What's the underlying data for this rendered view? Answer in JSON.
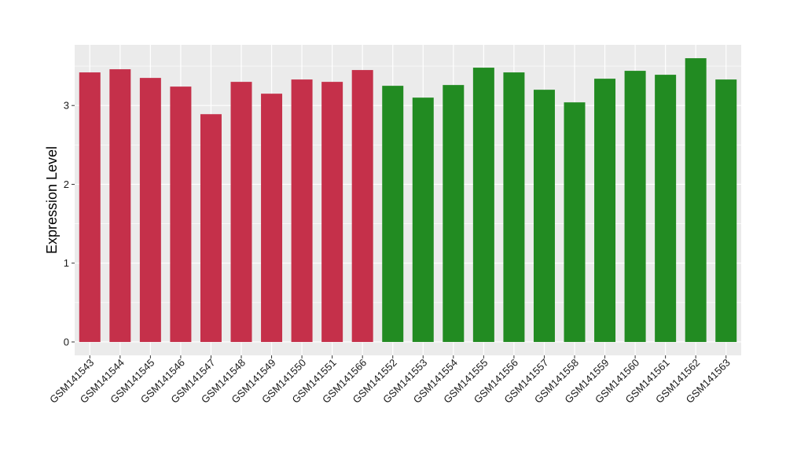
{
  "chart_data": {
    "type": "bar",
    "title": "",
    "xlabel": "",
    "ylabel": "Expression Level",
    "ylim": [
      -0.17,
      3.77
    ],
    "yticks": [
      0,
      1,
      2,
      3
    ],
    "grid": true,
    "legend": "none",
    "categories": [
      "GSM141543",
      "GSM141544",
      "GSM141545",
      "GSM141546",
      "GSM141547",
      "GSM141548",
      "GSM141549",
      "GSM141550",
      "GSM141551",
      "GSM141566",
      "GSM141552",
      "GSM141553",
      "GSM141554",
      "GSM141555",
      "GSM141556",
      "GSM141557",
      "GSM141558",
      "GSM141559",
      "GSM141560",
      "GSM141561",
      "GSM141562",
      "GSM141563"
    ],
    "values": [
      3.42,
      3.46,
      3.35,
      3.24,
      2.89,
      3.3,
      3.15,
      3.33,
      3.3,
      3.45,
      3.25,
      3.1,
      3.26,
      3.48,
      3.42,
      3.2,
      3.04,
      3.34,
      3.44,
      3.39,
      3.6,
      3.33
    ],
    "group_colors": [
      "#c5304a",
      "#c5304a",
      "#c5304a",
      "#c5304a",
      "#c5304a",
      "#c5304a",
      "#c5304a",
      "#c5304a",
      "#c5304a",
      "#c5304a",
      "#228b22",
      "#228b22",
      "#228b22",
      "#228b22",
      "#228b22",
      "#228b22",
      "#228b22",
      "#228b22",
      "#228b22",
      "#228b22",
      "#228b22",
      "#228b22"
    ],
    "panel_background": "#ebebeb",
    "gridline_color": "#ffffff"
  }
}
